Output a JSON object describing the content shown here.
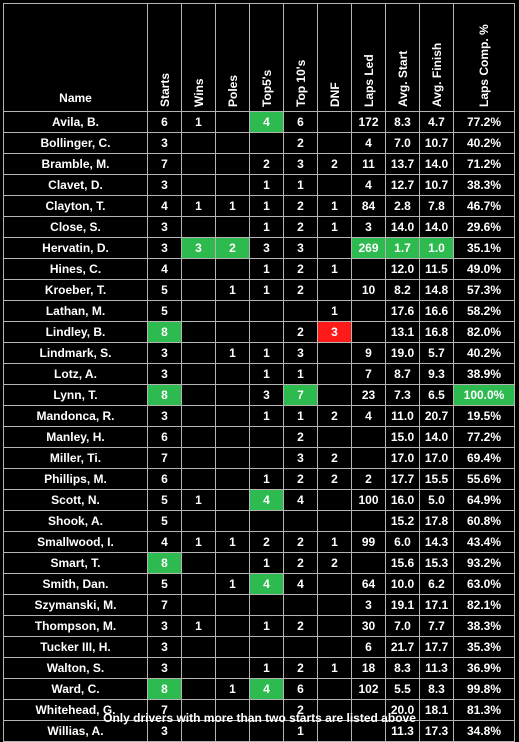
{
  "headers": {
    "name": "Name",
    "starts": "Starts",
    "wins": "Wins",
    "poles": "Poles",
    "top5": "Top5's",
    "top10": "Top 10's",
    "dnf": "DNF",
    "laps_led": "Laps Led",
    "avg_start": "Avg. Start",
    "avg_finish": "Avg. Finish",
    "laps_comp": "Laps Comp. %"
  },
  "columns": [
    "name",
    "starts",
    "wins",
    "poles",
    "top5",
    "top10",
    "dnf",
    "laps_led",
    "avg_start",
    "avg_finish",
    "laps_comp"
  ],
  "rows": [
    {
      "name": "Avila, B.",
      "starts": "6",
      "wins": "1",
      "poles": "",
      "top5": "4",
      "top10": "6",
      "dnf": "",
      "laps_led": "172",
      "avg_start": "8.3",
      "avg_finish": "4.7",
      "laps_comp": "77.2%",
      "hl": {
        "top5": "green"
      }
    },
    {
      "name": "Bollinger, C.",
      "starts": "3",
      "wins": "",
      "poles": "",
      "top5": "",
      "top10": "2",
      "dnf": "",
      "laps_led": "4",
      "avg_start": "7.0",
      "avg_finish": "10.7",
      "laps_comp": "40.2%"
    },
    {
      "name": "Bramble, M.",
      "starts": "7",
      "wins": "",
      "poles": "",
      "top5": "2",
      "top10": "3",
      "dnf": "2",
      "laps_led": "11",
      "avg_start": "13.7",
      "avg_finish": "14.0",
      "laps_comp": "71.2%"
    },
    {
      "name": "Clavet, D.",
      "starts": "3",
      "wins": "",
      "poles": "",
      "top5": "1",
      "top10": "1",
      "dnf": "",
      "laps_led": "4",
      "avg_start": "12.7",
      "avg_finish": "10.7",
      "laps_comp": "38.3%"
    },
    {
      "name": "Clayton, T.",
      "starts": "4",
      "wins": "1",
      "poles": "1",
      "top5": "1",
      "top10": "2",
      "dnf": "1",
      "laps_led": "84",
      "avg_start": "2.8",
      "avg_finish": "7.8",
      "laps_comp": "46.7%"
    },
    {
      "name": "Close, S.",
      "starts": "3",
      "wins": "",
      "poles": "",
      "top5": "1",
      "top10": "2",
      "dnf": "1",
      "laps_led": "3",
      "avg_start": "14.0",
      "avg_finish": "14.0",
      "laps_comp": "29.6%"
    },
    {
      "name": "Hervatin, D.",
      "starts": "3",
      "wins": "3",
      "poles": "2",
      "top5": "3",
      "top10": "3",
      "dnf": "",
      "laps_led": "269",
      "avg_start": "1.7",
      "avg_finish": "1.0",
      "laps_comp": "35.1%",
      "hl": {
        "wins": "green",
        "poles": "green",
        "laps_led": "green",
        "avg_start": "green",
        "avg_finish": "green"
      }
    },
    {
      "name": "Hines, C.",
      "starts": "4",
      "wins": "",
      "poles": "",
      "top5": "1",
      "top10": "2",
      "dnf": "1",
      "laps_led": "",
      "avg_start": "12.0",
      "avg_finish": "11.5",
      "laps_comp": "49.0%"
    },
    {
      "name": "Kroeber, T.",
      "starts": "5",
      "wins": "",
      "poles": "1",
      "top5": "1",
      "top10": "2",
      "dnf": "",
      "laps_led": "10",
      "avg_start": "8.2",
      "avg_finish": "14.8",
      "laps_comp": "57.3%"
    },
    {
      "name": "Lathan, M.",
      "starts": "5",
      "wins": "",
      "poles": "",
      "top5": "",
      "top10": "",
      "dnf": "1",
      "laps_led": "",
      "avg_start": "17.6",
      "avg_finish": "16.6",
      "laps_comp": "58.2%"
    },
    {
      "name": "Lindley, B.",
      "starts": "8",
      "wins": "",
      "poles": "",
      "top5": "",
      "top10": "2",
      "dnf": "3",
      "laps_led": "",
      "avg_start": "13.1",
      "avg_finish": "16.8",
      "laps_comp": "82.0%",
      "hl": {
        "starts": "green",
        "dnf": "red"
      }
    },
    {
      "name": "Lindmark, S.",
      "starts": "3",
      "wins": "",
      "poles": "1",
      "top5": "1",
      "top10": "3",
      "dnf": "",
      "laps_led": "9",
      "avg_start": "19.0",
      "avg_finish": "5.7",
      "laps_comp": "40.2%"
    },
    {
      "name": "Lotz, A.",
      "starts": "3",
      "wins": "",
      "poles": "",
      "top5": "1",
      "top10": "1",
      "dnf": "",
      "laps_led": "7",
      "avg_start": "8.7",
      "avg_finish": "9.3",
      "laps_comp": "38.9%"
    },
    {
      "name": "Lynn, T.",
      "starts": "8",
      "wins": "",
      "poles": "",
      "top5": "3",
      "top10": "7",
      "dnf": "",
      "laps_led": "23",
      "avg_start": "7.3",
      "avg_finish": "6.5",
      "laps_comp": "100.0%",
      "hl": {
        "starts": "green",
        "top10": "green",
        "laps_comp": "green"
      }
    },
    {
      "name": "Mandonca, R.",
      "starts": "3",
      "wins": "",
      "poles": "",
      "top5": "1",
      "top10": "1",
      "dnf": "2",
      "laps_led": "4",
      "avg_start": "11.0",
      "avg_finish": "20.7",
      "laps_comp": "19.5%"
    },
    {
      "name": "Manley, H.",
      "starts": "6",
      "wins": "",
      "poles": "",
      "top5": "",
      "top10": "2",
      "dnf": "",
      "laps_led": "",
      "avg_start": "15.0",
      "avg_finish": "14.0",
      "laps_comp": "77.2%"
    },
    {
      "name": "Miller, Ti.",
      "starts": "7",
      "wins": "",
      "poles": "",
      "top5": "",
      "top10": "3",
      "dnf": "2",
      "laps_led": "",
      "avg_start": "17.0",
      "avg_finish": "17.0",
      "laps_comp": "69.4%"
    },
    {
      "name": "Phillips, M.",
      "starts": "6",
      "wins": "",
      "poles": "",
      "top5": "1",
      "top10": "2",
      "dnf": "2",
      "laps_led": "2",
      "avg_start": "17.7",
      "avg_finish": "15.5",
      "laps_comp": "55.6%"
    },
    {
      "name": "Scott, N.",
      "starts": "5",
      "wins": "1",
      "poles": "",
      "top5": "4",
      "top10": "4",
      "dnf": "",
      "laps_led": "100",
      "avg_start": "16.0",
      "avg_finish": "5.0",
      "laps_comp": "64.9%",
      "hl": {
        "top5": "green"
      }
    },
    {
      "name": "Shook, A.",
      "starts": "5",
      "wins": "",
      "poles": "",
      "top5": "",
      "top10": "",
      "dnf": "",
      "laps_led": "",
      "avg_start": "15.2",
      "avg_finish": "17.8",
      "laps_comp": "60.8%"
    },
    {
      "name": "Smallwood, I.",
      "starts": "4",
      "wins": "1",
      "poles": "1",
      "top5": "2",
      "top10": "2",
      "dnf": "1",
      "laps_led": "99",
      "avg_start": "6.0",
      "avg_finish": "14.3",
      "laps_comp": "43.4%"
    },
    {
      "name": "Smart, T.",
      "starts": "8",
      "wins": "",
      "poles": "",
      "top5": "1",
      "top10": "2",
      "dnf": "2",
      "laps_led": "",
      "avg_start": "15.6",
      "avg_finish": "15.3",
      "laps_comp": "93.2%",
      "hl": {
        "starts": "green"
      }
    },
    {
      "name": "Smith, Dan.",
      "starts": "5",
      "wins": "",
      "poles": "1",
      "top5": "4",
      "top10": "4",
      "dnf": "",
      "laps_led": "64",
      "avg_start": "10.0",
      "avg_finish": "6.2",
      "laps_comp": "63.0%",
      "hl": {
        "top5": "green"
      }
    },
    {
      "name": "Szymanski, M.",
      "starts": "7",
      "wins": "",
      "poles": "",
      "top5": "",
      "top10": "",
      "dnf": "",
      "laps_led": "3",
      "avg_start": "19.1",
      "avg_finish": "17.1",
      "laps_comp": "82.1%"
    },
    {
      "name": "Thompson, M.",
      "starts": "3",
      "wins": "1",
      "poles": "",
      "top5": "1",
      "top10": "2",
      "dnf": "",
      "laps_led": "30",
      "avg_start": "7.0",
      "avg_finish": "7.7",
      "laps_comp": "38.3%"
    },
    {
      "name": "Tucker III, H.",
      "starts": "3",
      "wins": "",
      "poles": "",
      "top5": "",
      "top10": "",
      "dnf": "",
      "laps_led": "6",
      "avg_start": "21.7",
      "avg_finish": "17.7",
      "laps_comp": "35.3%"
    },
    {
      "name": "Walton, S.",
      "starts": "3",
      "wins": "",
      "poles": "",
      "top5": "1",
      "top10": "2",
      "dnf": "1",
      "laps_led": "18",
      "avg_start": "8.3",
      "avg_finish": "11.3",
      "laps_comp": "36.9%"
    },
    {
      "name": "Ward, C.",
      "starts": "8",
      "wins": "",
      "poles": "1",
      "top5": "4",
      "top10": "6",
      "dnf": "",
      "laps_led": "102",
      "avg_start": "5.5",
      "avg_finish": "8.3",
      "laps_comp": "99.8%",
      "hl": {
        "starts": "green",
        "top5": "green"
      }
    },
    {
      "name": "Whitehead, G.",
      "starts": "7",
      "wins": "",
      "poles": "",
      "top5": "",
      "top10": "2",
      "dnf": "",
      "laps_led": "",
      "avg_start": "20.0",
      "avg_finish": "18.1",
      "laps_comp": "81.3%"
    },
    {
      "name": "Willias, A.",
      "starts": "3",
      "wins": "",
      "poles": "",
      "top5": "",
      "top10": "1",
      "dnf": "",
      "laps_led": "",
      "avg_start": "11.3",
      "avg_finish": "17.3",
      "laps_comp": "34.8%"
    }
  ],
  "colors": {
    "highlight_green": "#2dbb4f",
    "highlight_red": "#ff1a1a",
    "background": "#000000",
    "grid": "#b4b4b4"
  },
  "footer": "Only drivers with more than two starts are listed above"
}
